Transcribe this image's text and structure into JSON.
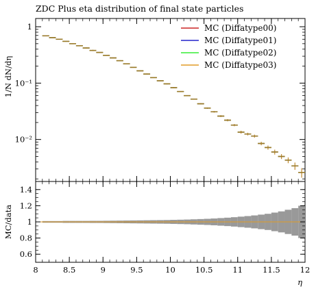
{
  "chart_data": [
    {
      "type": "line",
      "title": "ZDC Plus eta distribution of final state particles",
      "ylabel": "1/N dN/dη",
      "yscale": "log",
      "xlim": [
        8,
        12
      ],
      "ylim": [
        0.0018,
        1.4
      ],
      "ytick_values": [
        1,
        0.1,
        0.01
      ],
      "yticks": [
        "1",
        "10⁻¹",
        "10⁻²"
      ],
      "legend_position": "top-right",
      "series": [
        {
          "name": "MC (Diffatype00)",
          "color": "#cc2222"
        },
        {
          "name": "MC (Diffatype01)",
          "color": "#2222cc"
        },
        {
          "name": "MC (Diffatype02)",
          "color": "#33ee33"
        },
        {
          "name": "MC (Diffatype03)",
          "color": "#e09a25"
        }
      ],
      "x": [
        8.15,
        8.25,
        8.35,
        8.45,
        8.55,
        8.65,
        8.75,
        8.85,
        8.95,
        9.05,
        9.15,
        9.25,
        9.35,
        9.45,
        9.55,
        9.65,
        9.75,
        9.85,
        9.95,
        10.05,
        10.15,
        10.25,
        10.35,
        10.45,
        10.55,
        10.65,
        10.75,
        10.85,
        10.95,
        11.05,
        11.15,
        11.25,
        11.35,
        11.45,
        11.55,
        11.65,
        11.75,
        11.85,
        11.95
      ],
      "y": [
        0.69,
        0.64,
        0.6,
        0.55,
        0.5,
        0.46,
        0.42,
        0.38,
        0.35,
        0.31,
        0.28,
        0.25,
        0.22,
        0.19,
        0.165,
        0.145,
        0.125,
        0.11,
        0.097,
        0.083,
        0.071,
        0.06,
        0.052,
        0.043,
        0.036,
        0.031,
        0.026,
        0.022,
        0.018,
        0.0135,
        0.0125,
        0.0115,
        0.0085,
        0.0072,
        0.006,
        0.005,
        0.0043,
        0.0034,
        0.0026
      ],
      "yerr": [
        0.01,
        0.01,
        0.01,
        0.01,
        0.01,
        0.01,
        0.01,
        0.01,
        0.005,
        0.005,
        0.005,
        0.005,
        0.004,
        0.003,
        0.003,
        0.003,
        0.002,
        0.002,
        0.002,
        0.002,
        0.001,
        0.001,
        0.001,
        0.001,
        0.001,
        0.001,
        0.001,
        0.001,
        0.0008,
        0.0008,
        0.0007,
        0.0007,
        0.0006,
        0.0006,
        0.0006,
        0.0005,
        0.0005,
        0.0005,
        0.0005
      ]
    },
    {
      "type": "area",
      "ylabel": "MC/data",
      "xlabel": "η",
      "xlim": [
        8,
        12
      ],
      "ylim": [
        0.5,
        1.5
      ],
      "yticks": [
        "0.6",
        "0.8",
        "1",
        "1.2",
        "1.4"
      ],
      "ytick_values": [
        0.6,
        0.8,
        1,
        1.2,
        1.4
      ],
      "xticks": [
        "8",
        "8.5",
        "9",
        "9.5",
        "10",
        "10.5",
        "11",
        "11.5",
        "12"
      ],
      "xtick_values": [
        8,
        8.5,
        9,
        9.5,
        10,
        10.5,
        11,
        11.5,
        12
      ],
      "band_color": "#999999",
      "ratio": 1.0,
      "band_halfwidth": [
        0.01,
        0.01,
        0.01,
        0.012,
        0.012,
        0.012,
        0.012,
        0.013,
        0.013,
        0.014,
        0.015,
        0.016,
        0.017,
        0.018,
        0.019,
        0.02,
        0.021,
        0.022,
        0.023,
        0.025,
        0.027,
        0.029,
        0.032,
        0.035,
        0.038,
        0.042,
        0.047,
        0.052,
        0.058,
        0.065,
        0.072,
        0.08,
        0.09,
        0.1,
        0.115,
        0.13,
        0.15,
        0.17,
        0.2
      ]
    }
  ]
}
